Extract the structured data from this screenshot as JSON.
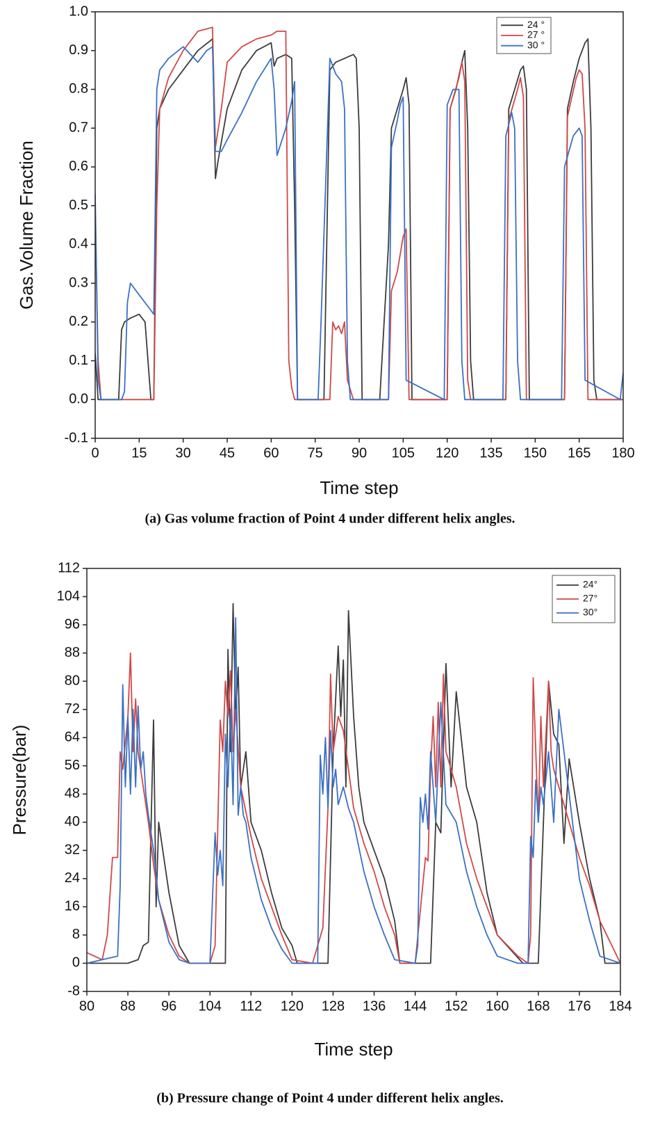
{
  "chart_data": [
    {
      "type": "line",
      "caption": "(a) Gas volume fraction of Point 4 under different helix angles.",
      "y_label": "Gas.Volume Fraction",
      "x_label": "Time step",
      "xlim": [
        0,
        180
      ],
      "xticks": [
        0,
        15,
        30,
        45,
        60,
        75,
        90,
        105,
        120,
        135,
        150,
        165,
        180
      ],
      "ylim": [
        -0.1,
        1.0
      ],
      "yticks": [
        -0.1,
        {
          "value": 0,
          "label": "0.0"
        },
        0.1,
        0.2,
        0.3,
        0.4,
        0.5,
        0.6,
        0.7,
        0.8,
        0.9,
        {
          "value": 1,
          "label": "1.0"
        }
      ],
      "legend": "upper right",
      "series": [
        {
          "name": "24 °",
          "color": "#3c3c3c",
          "x": [
            0,
            1,
            2,
            8,
            9,
            10,
            12,
            15,
            17,
            18,
            19,
            20,
            21,
            22,
            25,
            30,
            35,
            40,
            41,
            42,
            45,
            50,
            55,
            60,
            61,
            62,
            65,
            67,
            68,
            69,
            70,
            78,
            80,
            82,
            85,
            88,
            89,
            90,
            91,
            97,
            100,
            101,
            103,
            105,
            106,
            107,
            108,
            120,
            121,
            123,
            125,
            126,
            127,
            128,
            129,
            140,
            141,
            143,
            145,
            146,
            147,
            148,
            160,
            161,
            163,
            165,
            167,
            168,
            169,
            170,
            171,
            180
          ],
          "values": [
            0.12,
            0,
            0,
            0,
            0.18,
            0.2,
            0.21,
            0.22,
            0.2,
            0.1,
            0,
            0,
            0.7,
            0.75,
            0.8,
            0.85,
            0.9,
            0.93,
            0.57,
            0.62,
            0.75,
            0.85,
            0.9,
            0.92,
            0.86,
            0.88,
            0.89,
            0.88,
            0.5,
            0,
            0,
            0,
            0.85,
            0.87,
            0.88,
            0.89,
            0.88,
            0.7,
            0,
            0,
            0.4,
            0.7,
            0.75,
            0.8,
            0.83,
            0.76,
            0,
            0,
            0.75,
            0.8,
            0.87,
            0.9,
            0.7,
            0.1,
            0,
            0,
            0.75,
            0.8,
            0.85,
            0.86,
            0.8,
            0,
            0,
            0.75,
            0.82,
            0.88,
            0.92,
            0.93,
            0.7,
            0.05,
            0,
            0
          ]
        },
        {
          "name": "27 °",
          "color": "#d04848",
          "x": [
            0,
            1,
            2,
            20,
            21,
            22,
            25,
            30,
            35,
            40,
            41,
            43,
            45,
            50,
            55,
            60,
            62,
            65,
            66,
            67,
            68,
            70,
            80,
            81,
            82,
            83,
            84,
            85,
            86,
            88,
            90,
            100,
            101,
            103,
            105,
            106,
            107,
            120,
            121,
            124,
            125,
            126,
            127,
            128,
            140,
            141,
            144,
            145,
            146,
            147,
            160,
            161,
            164,
            165,
            166,
            167,
            168,
            180
          ],
          "values": [
            0.5,
            0.1,
            0,
            0,
            0.5,
            0.75,
            0.83,
            0.9,
            0.95,
            0.96,
            0.65,
            0.75,
            0.87,
            0.91,
            0.93,
            0.94,
            0.95,
            0.95,
            0.1,
            0.03,
            0,
            0,
            0,
            0.2,
            0.18,
            0.19,
            0.17,
            0.2,
            0.05,
            0,
            0,
            0,
            0.28,
            0.33,
            0.42,
            0.44,
            0,
            0,
            0.75,
            0.83,
            0.87,
            0.82,
            0.05,
            0,
            0,
            0.72,
            0.8,
            0.83,
            0.78,
            0,
            0,
            0.73,
            0.83,
            0.85,
            0.84,
            0.7,
            0,
            0
          ]
        },
        {
          "name": "30 °",
          "color": "#3b70c4",
          "x": [
            0,
            1,
            2,
            9,
            10,
            11,
            12,
            15,
            18,
            20,
            21,
            22,
            25,
            30,
            35,
            38,
            40,
            41,
            43,
            45,
            50,
            55,
            60,
            61,
            62,
            65,
            67,
            68,
            69,
            76,
            77,
            80,
            81,
            82,
            84,
            85,
            86,
            87,
            100,
            101,
            103,
            104,
            105,
            106,
            119,
            120,
            122,
            124,
            125,
            126,
            139,
            140,
            142,
            143,
            144,
            145,
            159,
            160,
            163,
            165,
            166,
            167,
            179,
            180
          ],
          "values": [
            0.53,
            0.05,
            0,
            0,
            0.02,
            0.25,
            0.3,
            0.27,
            0.24,
            0.22,
            0.8,
            0.85,
            0.88,
            0.91,
            0.87,
            0.9,
            0.91,
            0.64,
            0.64,
            0.67,
            0.74,
            0.82,
            0.88,
            0.8,
            0.63,
            0.7,
            0.77,
            0.82,
            0,
            0,
            0.2,
            0.88,
            0.86,
            0.84,
            0.82,
            0.75,
            0.1,
            0,
            0,
            0.65,
            0.72,
            0.76,
            0.78,
            0.05,
            0,
            0.76,
            0.8,
            0.8,
            0.1,
            0,
            0,
            0.68,
            0.74,
            0.7,
            0.1,
            0,
            0,
            0.6,
            0.68,
            0.7,
            0.68,
            0.05,
            0,
            0.07
          ]
        }
      ]
    },
    {
      "type": "line",
      "caption": "(b) Pressure change of Point 4 under different helix angles.",
      "y_label": "Pressure(bar)",
      "x_label": "Time step",
      "xlim": [
        80,
        184
      ],
      "xticks": [
        80,
        88,
        96,
        104,
        112,
        120,
        128,
        136,
        144,
        152,
        160,
        168,
        176,
        184
      ],
      "ylim": [
        -8,
        112
      ],
      "yticks": [
        -8,
        0,
        8,
        16,
        24,
        32,
        40,
        48,
        56,
        64,
        72,
        80,
        88,
        96,
        104,
        112
      ],
      "legend": "upper right",
      "series": [
        {
          "name": "24°",
          "color": "#3c3c3c",
          "x": [
            80,
            85,
            88,
            90,
            91,
            92,
            93,
            93.5,
            94,
            96,
            98,
            100,
            105,
            107,
            107.5,
            108,
            108.5,
            109,
            109.5,
            110,
            111,
            112,
            114,
            116,
            118,
            120,
            121,
            125,
            127,
            128,
            129,
            129.5,
            130,
            130.5,
            131,
            132,
            133,
            134,
            136,
            138,
            140,
            141,
            145,
            147,
            148,
            149,
            150,
            151,
            152,
            154,
            156,
            158,
            160,
            165,
            167,
            168,
            169,
            170,
            171,
            172,
            173,
            174,
            176,
            178,
            180,
            181,
            184
          ],
          "values": [
            0,
            0,
            0,
            1,
            5,
            6,
            69,
            16,
            40,
            20,
            5,
            0,
            0,
            0,
            89,
            60,
            102,
            70,
            84,
            50,
            60,
            40,
            32,
            20,
            10,
            5,
            0,
            0,
            0,
            60,
            90,
            70,
            86,
            50,
            100,
            70,
            50,
            40,
            32,
            24,
            12,
            0,
            0,
            0,
            40,
            37,
            85,
            50,
            77,
            50,
            40,
            20,
            8,
            0,
            0,
            0,
            40,
            80,
            65,
            62,
            34,
            58,
            40,
            24,
            12,
            0,
            0
          ]
        },
        {
          "name": "27°",
          "color": "#d04848",
          "x": [
            80,
            83,
            84,
            85,
            86,
            86.5,
            87,
            88,
            88.5,
            89,
            89.5,
            90,
            91,
            92,
            93,
            94,
            96,
            98,
            100,
            104,
            105,
            106,
            106.5,
            107,
            107.5,
            108,
            108.5,
            109,
            110,
            112,
            114,
            116,
            118,
            120,
            124,
            126,
            127,
            127.5,
            128,
            129,
            130,
            131,
            132,
            134,
            136,
            138,
            140,
            141,
            144,
            146,
            146.5,
            147,
            147.5,
            148,
            148.5,
            149,
            149.5,
            150,
            152,
            154,
            156,
            158,
            160,
            164,
            166,
            166.5,
            167,
            168,
            168.5,
            169,
            170,
            170.5,
            171,
            172,
            174,
            176,
            178,
            180,
            184
          ],
          "values": [
            3,
            1,
            8,
            30,
            30,
            60,
            55,
            70,
            88,
            60,
            75,
            60,
            50,
            40,
            28,
            18,
            8,
            2,
            0,
            0,
            5,
            69,
            60,
            80,
            70,
            83,
            60,
            72,
            50,
            36,
            24,
            16,
            8,
            1,
            0,
            10,
            44,
            82,
            60,
            70,
            66,
            55,
            44,
            34,
            26,
            16,
            8,
            0,
            0,
            30,
            29,
            55,
            70,
            50,
            74,
            50,
            82,
            60,
            50,
            34,
            24,
            16,
            8,
            2,
            0,
            8,
            81,
            40,
            70,
            50,
            80,
            60,
            55,
            50,
            40,
            30,
            22,
            12,
            0
          ]
        },
        {
          "name": "30°",
          "color": "#3b70c4",
          "x": [
            80,
            86,
            86.5,
            87,
            87.5,
            88,
            88.5,
            89,
            89.5,
            90,
            90.5,
            91,
            91.5,
            92,
            93,
            94,
            96,
            98,
            100,
            104,
            105,
            105.5,
            106,
            106.5,
            107,
            107.5,
            108,
            108.5,
            109,
            109.5,
            110,
            110.5,
            111,
            112,
            114,
            116,
            118,
            120,
            125,
            125.5,
            126,
            126.5,
            127,
            127.5,
            128,
            128.5,
            129,
            130,
            131,
            132,
            134,
            136,
            138,
            140,
            144,
            144.5,
            145,
            145.5,
            146,
            146.5,
            147,
            148,
            149,
            150,
            152,
            154,
            156,
            158,
            160,
            164,
            165,
            166,
            166.5,
            167,
            167.5,
            168,
            168.5,
            169,
            170,
            171,
            172,
            174,
            176,
            178,
            180,
            184
          ],
          "values": [
            0,
            2,
            22,
            79,
            50,
            70,
            48,
            72,
            50,
            73,
            55,
            60,
            48,
            42,
            32,
            18,
            6,
            1,
            0,
            0,
            37,
            25,
            32,
            22,
            65,
            50,
            72,
            45,
            98,
            42,
            50,
            42,
            40,
            30,
            18,
            10,
            4,
            0,
            0,
            59,
            48,
            64,
            44,
            66,
            50,
            55,
            45,
            50,
            44,
            40,
            26,
            16,
            8,
            1,
            0,
            5,
            47,
            40,
            48,
            38,
            60,
            40,
            74,
            45,
            40,
            26,
            16,
            8,
            2,
            0,
            0,
            0,
            36,
            30,
            52,
            40,
            50,
            45,
            60,
            40,
            72,
            48,
            24,
            12,
            2,
            0
          ]
        }
      ]
    }
  ]
}
